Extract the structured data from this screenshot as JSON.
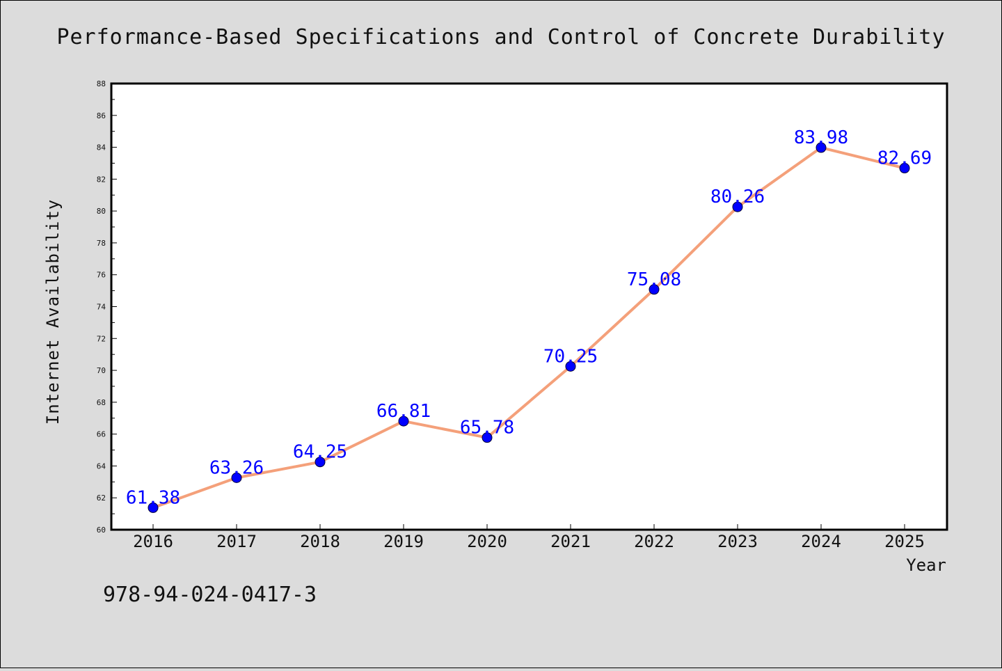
{
  "chart_data": {
    "type": "line",
    "title": "Performance-Based Specifications and Control of Concrete Durability",
    "xlabel": "Year",
    "ylabel": "Internet Availability",
    "categories": [
      "2016",
      "2017",
      "2018",
      "2019",
      "2020",
      "2021",
      "2022",
      "2023",
      "2024",
      "2025"
    ],
    "series": [
      {
        "values": [
          61.38,
          63.26,
          64.25,
          66.81,
          65.78,
          70.25,
          75.08,
          80.26,
          83.98,
          82.69
        ],
        "labels": [
          "61.38",
          "63.26",
          "64.25",
          "66.81",
          "65.78",
          "70.25",
          "75.08",
          "80.26",
          "83.98",
          "82.69"
        ],
        "line_color": "#f4a07a",
        "marker_color": "#0000ff"
      }
    ],
    "ylim": [
      60,
      88
    ],
    "yticks": [
      "60",
      "62",
      "64",
      "66",
      "68",
      "70",
      "72",
      "74",
      "76",
      "78",
      "80",
      "82",
      "84",
      "86",
      "88"
    ],
    "grid": false,
    "legend": "none"
  },
  "footnote": "978-94-024-0417-3",
  "colors": {
    "background": "#dcdcdc",
    "plot_background": "#ffffff",
    "axis": "#000000"
  }
}
